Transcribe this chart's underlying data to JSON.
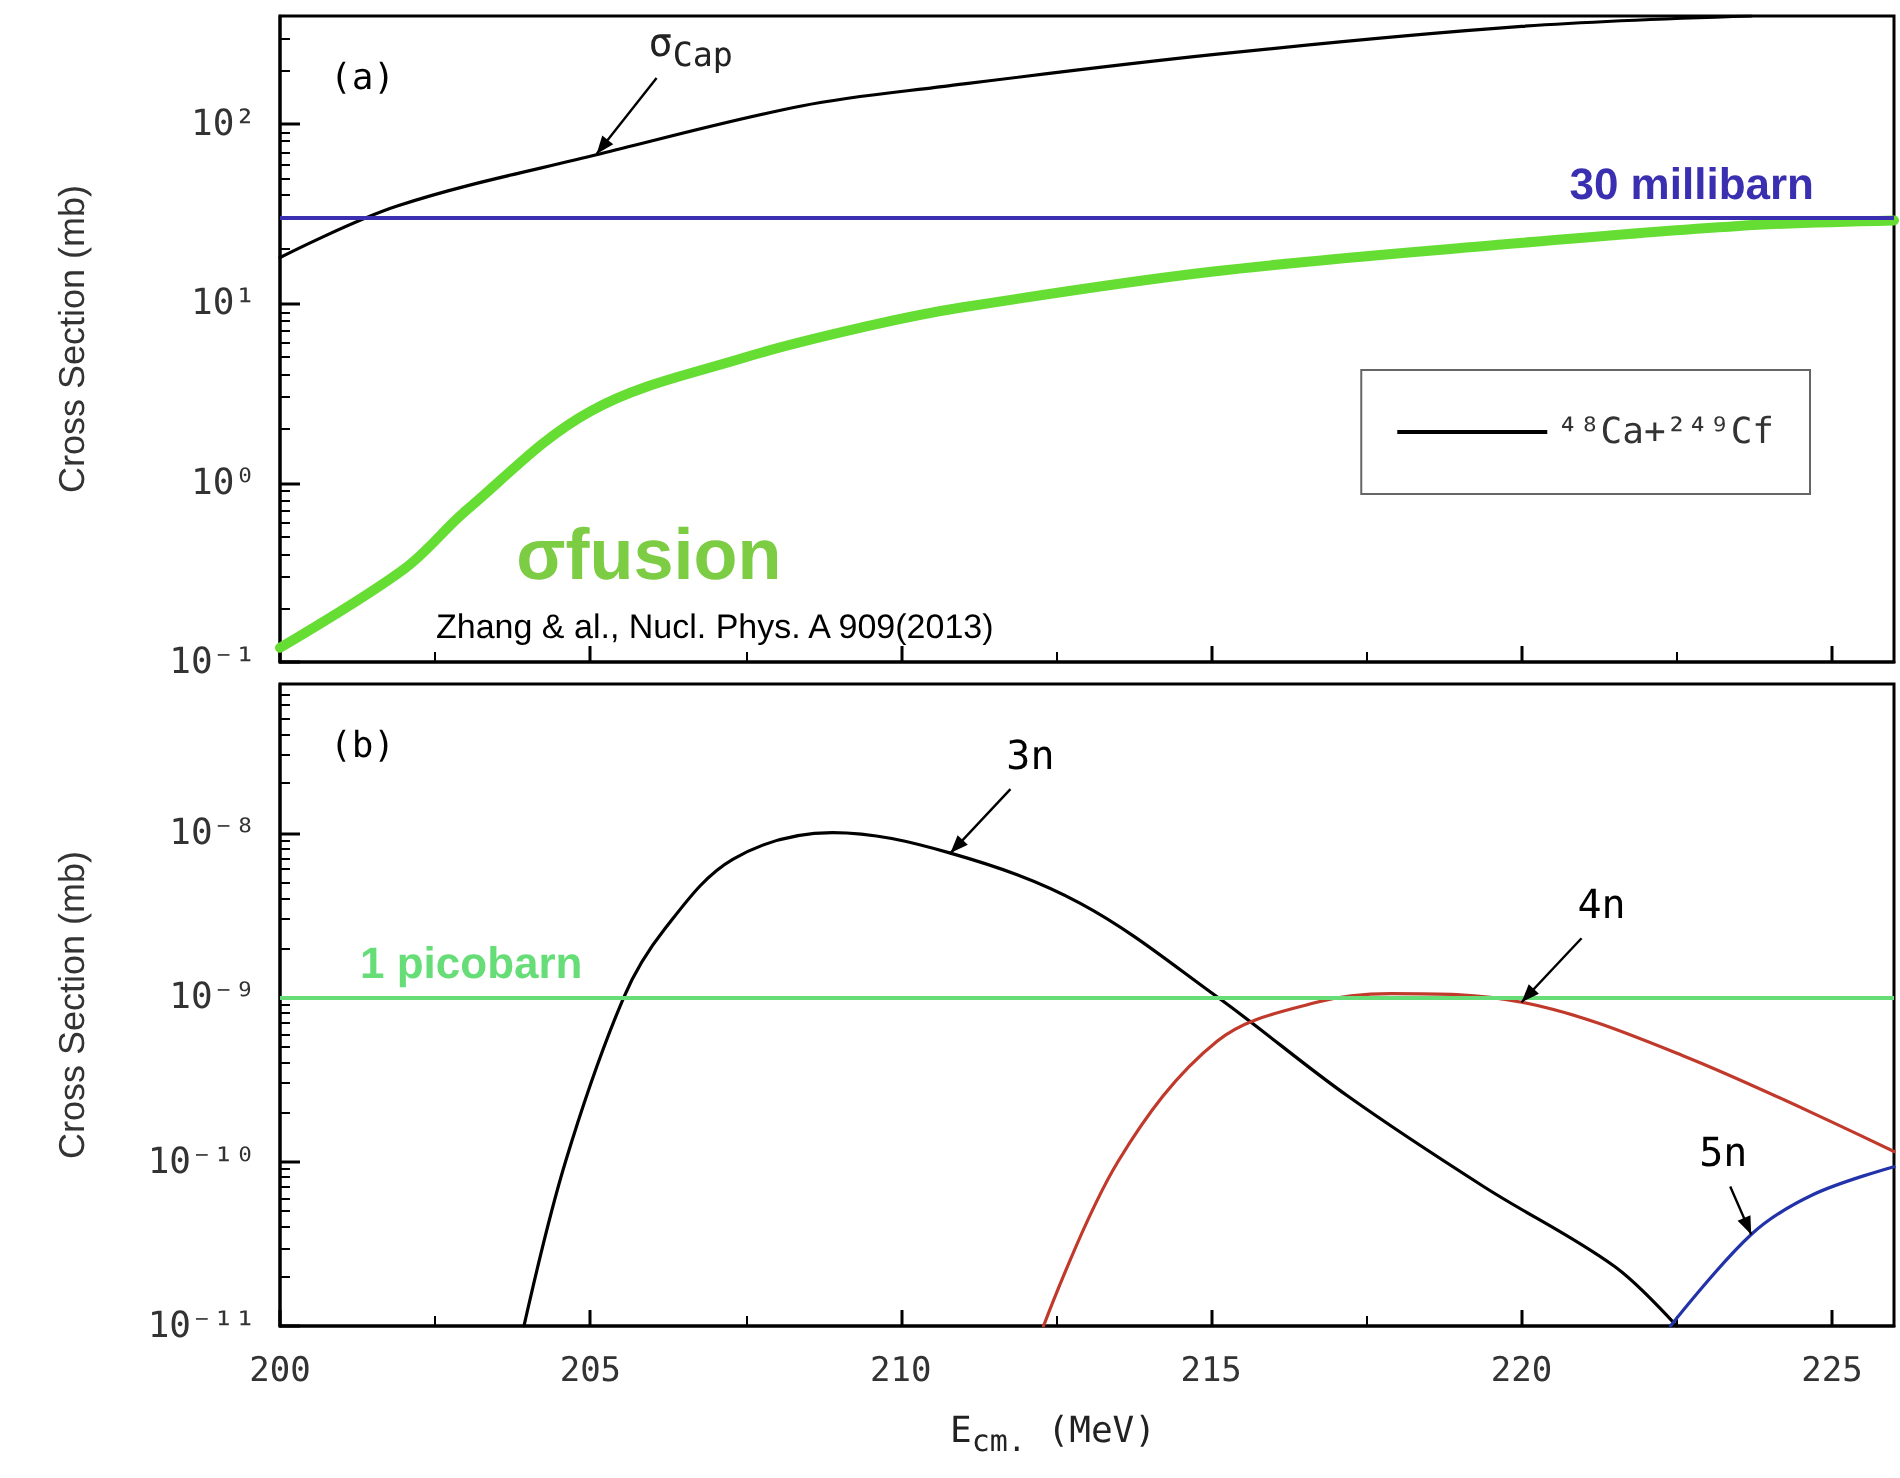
{
  "chart_data": [
    {
      "type": "line",
      "ylabel": "Cross Section (mb)",
      "xlim": [
        200,
        226
      ],
      "xticks": [
        200,
        205,
        210,
        215,
        220,
        225
      ],
      "ylim": [
        0.1,
        400
      ],
      "yticks": [
        {
          "value": 0.1,
          "label": "10⁻¹"
        },
        {
          "value": 1,
          "label": "10⁰"
        },
        {
          "value": 10,
          "label": "10¹"
        },
        {
          "value": 100,
          "label": "10²"
        }
      ],
      "log": "y",
      "tick_labels": "y",
      "legend": "right",
      "grid": false,
      "series": [
        {
          "name": "⁴⁸Ca+²⁴⁹Cf",
          "color": "#000000",
          "x": [
            200,
            201.9,
            205.15,
            208.4,
            210.7,
            215.1,
            220,
            223.7
          ],
          "values": [
            18,
            35,
            68,
            126,
            162,
            245,
            350,
            400
          ]
        },
        {
          "name": "σfusion",
          "color": "#66dd33",
          "x": [
            200,
            202,
            203,
            205,
            207.5,
            209.5,
            211,
            215,
            219.5,
            223.5,
            226
          ],
          "values": [
            0.12,
            0.33,
            0.7,
            2.5,
            5,
            7.5,
            9.5,
            15,
            21,
            27,
            29
          ]
        }
      ],
      "ref_lines": [
        {
          "axis": "y",
          "value": 30,
          "label": "30 millibarn",
          "color": "#3a2fb0"
        }
      ],
      "annotations": [
        "(a)",
        {
          "text": "σ$_{Cap}$",
          "x": 205.1,
          "y": 68
        },
        "Zhang & al., Nucl. Phys. A 909(2013)"
      ]
    },
    {
      "type": "line",
      "xlabel": "E$_{cm.}$ (MeV)",
      "ylabel": "Cross Section (mb)",
      "xlim": [
        200,
        226
      ],
      "xticks": [
        200,
        205,
        210,
        215,
        220,
        225
      ],
      "ylim": [
        1e-11,
        8e-08
      ],
      "yticks": [
        {
          "value": 1e-11,
          "label": "10⁻¹¹"
        },
        {
          "value": 1e-10,
          "label": "10⁻¹⁰"
        },
        {
          "value": 1e-09,
          "label": "10⁻⁹"
        },
        {
          "value": 1e-08,
          "label": "10⁻⁸"
        }
      ],
      "log": "y",
      "grid": false,
      "series": [
        {
          "name": "3n",
          "color": "#000000",
          "x": [
            203.93,
            204.6,
            205.54,
            206.2,
            207.3,
            208.9,
            210.8,
            212.9,
            215.1,
            217.2,
            219.4,
            221.5,
            222.5
          ],
          "values": [
            1e-11,
            1e-10,
            1e-09,
            2.6e-09,
            6.9e-09,
            1e-08,
            7.5e-09,
            3.7e-09,
            1e-09,
            2.5e-10,
            7e-11,
            2.3e-11,
            1e-11
          ]
        },
        {
          "name": "4n",
          "color": "#c0392b",
          "x": [
            212.3,
            213.5,
            215.1,
            216.7,
            217.9,
            220,
            222.6,
            226
          ],
          "values": [
            1e-11,
            1e-10,
            5.4e-10,
            9.3e-10,
            1.05e-09,
            9.3e-10,
            4.4e-10,
            1.15e-10
          ]
        },
        {
          "name": "5n",
          "color": "#2233aa",
          "x": [
            222.4,
            223.7,
            224.7,
            226
          ],
          "values": [
            1e-11,
            3.6e-11,
            6.3e-11,
            9.3e-11
          ]
        }
      ],
      "ref_lines": [
        {
          "axis": "y",
          "value": 1e-09,
          "label": "1 picobarn",
          "color": "#66dd77"
        }
      ],
      "annotations": [
        "(b)"
      ]
    }
  ]
}
